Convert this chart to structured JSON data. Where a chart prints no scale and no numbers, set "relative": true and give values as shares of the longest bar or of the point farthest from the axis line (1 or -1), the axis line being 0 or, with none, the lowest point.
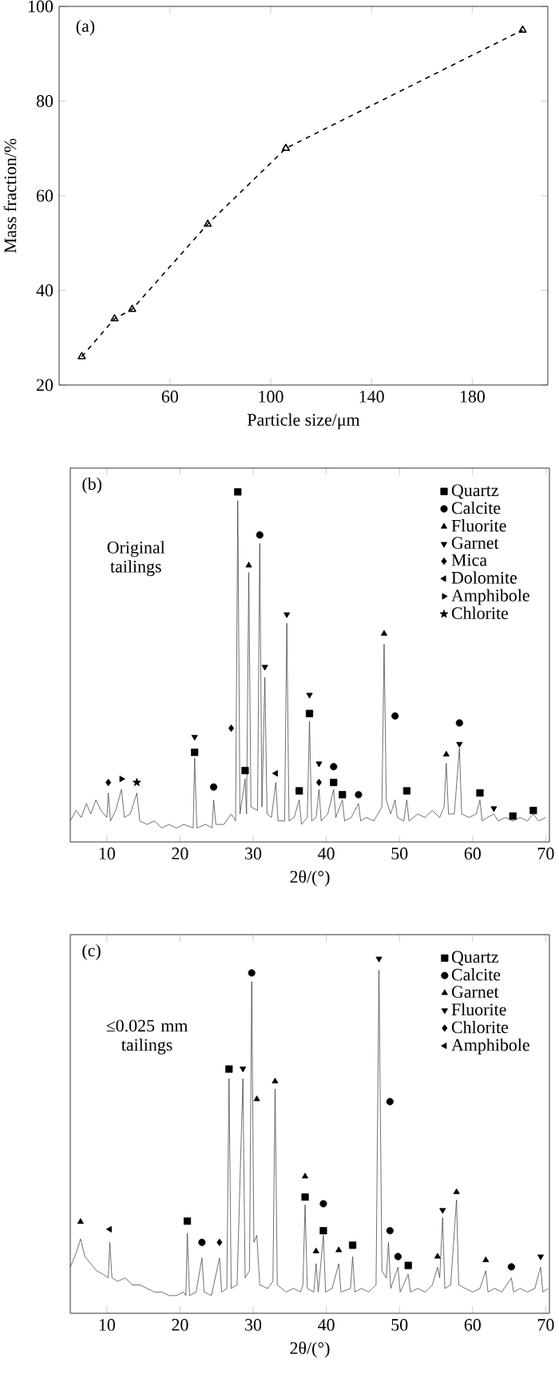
{
  "chart_data": [
    {
      "type": "line",
      "xlabel": "Particle size/μm",
      "ylabel": "Mass fraction/%",
      "annotations": [
        "(a)"
      ],
      "x": [
        25,
        38,
        45,
        75,
        106,
        200
      ],
      "values": [
        26,
        34,
        36,
        54,
        70,
        95
      ],
      "color": "#000000",
      "marker": "triangle",
      "line_style": "dashed",
      "xlim": [
        16,
        210
      ],
      "xticks": [
        60,
        100,
        140,
        180
      ],
      "ylim": [
        20,
        100
      ],
      "yticks": [
        20,
        40,
        60,
        80,
        100
      ]
    },
    {
      "type": "line",
      "relative": true,
      "xlabel": "2θ/(°)",
      "annotations": [
        "(b)",
        "Original tailings"
      ],
      "xlim": [
        5,
        70.5
      ],
      "xticks": [
        10,
        20,
        30,
        40,
        50,
        60,
        70
      ],
      "legend": "top right",
      "series": [
        {
          "type": "line",
          "color": "#333333",
          "x": [
            5.0,
            5.8,
            6.5,
            7.2,
            7.8,
            8.5,
            9.2,
            10.0,
            10.2,
            10.5,
            11.2,
            12.0,
            12.4,
            13.2,
            14.1,
            14.5,
            15.5,
            16.5,
            17.5,
            18.5,
            19.5,
            20.5,
            21.8,
            22.0,
            22.3,
            23.5,
            24.4,
            24.6,
            24.9,
            26.0,
            27.0,
            27.6,
            27.9,
            28.2,
            28.9,
            29.1,
            29.4,
            29.7,
            30.6,
            30.9,
            31.2,
            31.6,
            31.9,
            32.5,
            33.1,
            33.4,
            34.3,
            34.6,
            34.9,
            35.6,
            36.3,
            36.6,
            37.4,
            37.7,
            38.0,
            38.6,
            39.0,
            39.3,
            40.2,
            41.0,
            41.3,
            42.2,
            42.5,
            43.4,
            44.4,
            44.7,
            45.5,
            46.5,
            47.6,
            47.9,
            48.2,
            48.8,
            49.4,
            49.7,
            50.6,
            51.0,
            51.3,
            52.5,
            53.5,
            54.5,
            55.5,
            56.1,
            56.4,
            56.7,
            57.5,
            58.2,
            58.5,
            59.5,
            60.5,
            61.0,
            61.3,
            62.0,
            62.9,
            63.5,
            64.5,
            65.5,
            66.5,
            67.5,
            68.3,
            69.0,
            70.0
          ],
          "values": [
            0.06,
            0.09,
            0.07,
            0.11,
            0.08,
            0.12,
            0.09,
            0.07,
            0.14,
            0.06,
            0.09,
            0.15,
            0.07,
            0.08,
            0.14,
            0.06,
            0.05,
            0.06,
            0.04,
            0.05,
            0.04,
            0.05,
            0.04,
            0.24,
            0.04,
            0.05,
            0.04,
            0.12,
            0.05,
            0.05,
            0.08,
            0.06,
            0.975,
            0.08,
            0.18,
            0.08,
            0.77,
            0.1,
            0.09,
            0.853,
            0.1,
            0.47,
            0.08,
            0.07,
            0.17,
            0.06,
            0.06,
            0.625,
            0.06,
            0.07,
            0.12,
            0.05,
            0.07,
            0.344,
            0.06,
            0.07,
            0.15,
            0.06,
            0.08,
            0.15,
            0.07,
            0.12,
            0.06,
            0.07,
            0.11,
            0.06,
            0.07,
            0.06,
            0.1,
            0.565,
            0.12,
            0.08,
            0.12,
            0.07,
            0.06,
            0.12,
            0.06,
            0.08,
            0.07,
            0.09,
            0.07,
            0.1,
            0.225,
            0.08,
            0.08,
            0.268,
            0.08,
            0.07,
            0.08,
            0.12,
            0.06,
            0.07,
            0.08,
            0.06,
            0.07,
            0.06,
            0.07,
            0.06,
            0.08,
            0.06,
            0.07
          ]
        },
        {
          "name": "Quartz",
          "type": "scatter",
          "marker": "square",
          "color": "#000000",
          "x": [
            22.0,
            27.9,
            28.9,
            36.3,
            37.7,
            41.0,
            42.2,
            51.0,
            61.0,
            65.5,
            68.3
          ],
          "values": [
            0.256,
            1.0,
            0.204,
            0.146,
            0.367,
            0.17,
            0.135,
            0.146,
            0.14,
            0.074,
            0.09
          ]
        },
        {
          "name": "Calcite",
          "type": "scatter",
          "marker": "circle",
          "color": "#000000",
          "x": [
            24.6,
            30.9,
            41.0,
            44.4,
            49.4,
            58.2
          ],
          "values": [
            0.157,
            0.877,
            0.215,
            0.135,
            0.36,
            0.34
          ]
        },
        {
          "name": "Fluorite",
          "type": "scatter",
          "marker": "triangle",
          "color": "#000000",
          "x": [
            29.4,
            47.9,
            56.4
          ],
          "values": [
            0.79,
            0.595,
            0.25
          ]
        },
        {
          "name": "Garnet",
          "type": "scatter",
          "marker": "triangle-down",
          "color": "#000000",
          "x": [
            22.0,
            31.6,
            34.6,
            37.7,
            39.0,
            58.2,
            62.9
          ],
          "values": [
            0.3,
            0.5,
            0.65,
            0.42,
            0.224,
            0.28,
            0.096
          ]
        },
        {
          "name": "Mica",
          "type": "scatter",
          "marker": "diamond",
          "color": "#000000",
          "x": [
            10.2,
            27.0,
            39.0
          ],
          "values": [
            0.17,
            0.325,
            0.17
          ]
        },
        {
          "name": "Dolomite",
          "type": "scatter",
          "marker": "triangle-left",
          "color": "#000000",
          "x": [
            33.1
          ],
          "values": [
            0.196
          ]
        },
        {
          "name": "Amphibole",
          "type": "scatter",
          "marker": "triangle-right",
          "color": "#000000",
          "x": [
            12.0
          ],
          "values": [
            0.18
          ]
        },
        {
          "name": "Chlorite",
          "type": "scatter",
          "marker": "star",
          "color": "#000000",
          "x": [
            14.1
          ],
          "values": [
            0.17
          ]
        }
      ]
    },
    {
      "type": "line",
      "relative": true,
      "xlabel": "2θ/(°)",
      "annotations": [
        "(c)",
        "≤0.025 mm tailings"
      ],
      "xlim": [
        5,
        70.5
      ],
      "xticks": [
        10,
        20,
        30,
        40,
        50,
        60,
        70
      ],
      "legend": "top right",
      "series": [
        {
          "type": "line",
          "color": "#333333",
          "x": [
            5.0,
            5.8,
            6.4,
            7.0,
            7.8,
            8.6,
            9.5,
            10.2,
            10.4,
            10.7,
            11.5,
            12.5,
            13.5,
            14.5,
            15.5,
            16.5,
            17.5,
            18.5,
            19.5,
            20.5,
            20.8,
            21.0,
            21.3,
            22.2,
            23.0,
            23.3,
            24.3,
            25.4,
            25.7,
            26.4,
            26.7,
            27.0,
            27.8,
            28.6,
            28.9,
            29.5,
            29.8,
            30.1,
            30.5,
            30.9,
            32.0,
            32.7,
            33.0,
            33.3,
            34.5,
            35.5,
            36.5,
            36.8,
            37.1,
            37.4,
            38.3,
            38.6,
            38.9,
            39.6,
            39.9,
            40.8,
            41.7,
            42.0,
            43.3,
            43.6,
            43.9,
            44.8,
            45.8,
            46.8,
            47.2,
            47.6,
            48.2,
            48.5,
            48.8,
            49.8,
            50.1,
            51.2,
            51.5,
            52.5,
            53.5,
            54.5,
            55.2,
            55.5,
            55.9,
            56.2,
            57.0,
            57.8,
            58.1,
            59.0,
            60.0,
            61.0,
            61.8,
            62.1,
            63.0,
            64.0,
            65.3,
            65.6,
            66.5,
            67.5,
            68.5,
            69.3,
            69.6,
            70.3
          ],
          "values": [
            0.13,
            0.17,
            0.21,
            0.16,
            0.14,
            0.12,
            0.11,
            0.1,
            0.2,
            0.1,
            0.09,
            0.1,
            0.08,
            0.08,
            0.07,
            0.06,
            0.06,
            0.05,
            0.05,
            0.06,
            0.05,
            0.226,
            0.05,
            0.06,
            0.156,
            0.06,
            0.05,
            0.156,
            0.06,
            0.07,
            0.662,
            0.07,
            0.08,
            0.662,
            0.1,
            0.12,
            0.936,
            0.2,
            0.22,
            0.08,
            0.07,
            0.09,
            0.633,
            0.08,
            0.06,
            0.07,
            0.06,
            0.08,
            0.306,
            0.07,
            0.06,
            0.14,
            0.06,
            0.22,
            0.06,
            0.07,
            0.14,
            0.06,
            0.07,
            0.16,
            0.06,
            0.07,
            0.06,
            0.08,
            0.968,
            0.12,
            0.1,
            0.2,
            0.07,
            0.13,
            0.06,
            0.11,
            0.06,
            0.07,
            0.06,
            0.08,
            0.13,
            0.1,
            0.27,
            0.07,
            0.08,
            0.32,
            0.08,
            0.07,
            0.06,
            0.07,
            0.12,
            0.06,
            0.07,
            0.06,
            0.1,
            0.06,
            0.07,
            0.06,
            0.07,
            0.13,
            0.06,
            0.07
          ]
        },
        {
          "name": "Quartz",
          "type": "scatter",
          "marker": "square",
          "color": "#000000",
          "x": [
            21.0,
            26.7,
            37.1,
            39.6,
            43.6,
            51.2
          ],
          "values": [
            0.26,
            0.689,
            0.328,
            0.233,
            0.192,
            0.135
          ]
        },
        {
          "name": "Calcite",
          "type": "scatter",
          "marker": "circle",
          "color": "#000000",
          "x": [
            23.0,
            29.8,
            39.6,
            48.7,
            48.7,
            49.8,
            65.3
          ],
          "values": [
            0.2,
            0.96,
            0.309,
            0.597,
            0.233,
            0.16,
            0.131
          ]
        },
        {
          "name": "Garnet",
          "type": "scatter",
          "marker": "triangle",
          "color": "#000000",
          "x": [
            6.4,
            30.5,
            33.0,
            37.1,
            38.6,
            41.7,
            55.2,
            57.8,
            61.8
          ],
          "values": [
            0.258,
            0.604,
            0.654,
            0.386,
            0.175,
            0.178,
            0.16,
            0.342,
            0.15
          ]
        },
        {
          "name": "Fluorite",
          "type": "scatter",
          "marker": "triangle-down",
          "color": "#000000",
          "x": [
            28.6,
            47.2,
            55.9,
            69.3
          ],
          "values": [
            0.69,
            1.0,
            0.291,
            0.16
          ]
        },
        {
          "name": "Chlorite",
          "type": "scatter",
          "marker": "diamond",
          "color": "#000000",
          "x": [
            25.4
          ],
          "values": [
            0.2
          ]
        },
        {
          "name": "Amphibole",
          "type": "scatter",
          "marker": "triangle-left",
          "color": "#000000",
          "x": [
            10.4
          ],
          "values": [
            0.237
          ]
        }
      ]
    }
  ]
}
